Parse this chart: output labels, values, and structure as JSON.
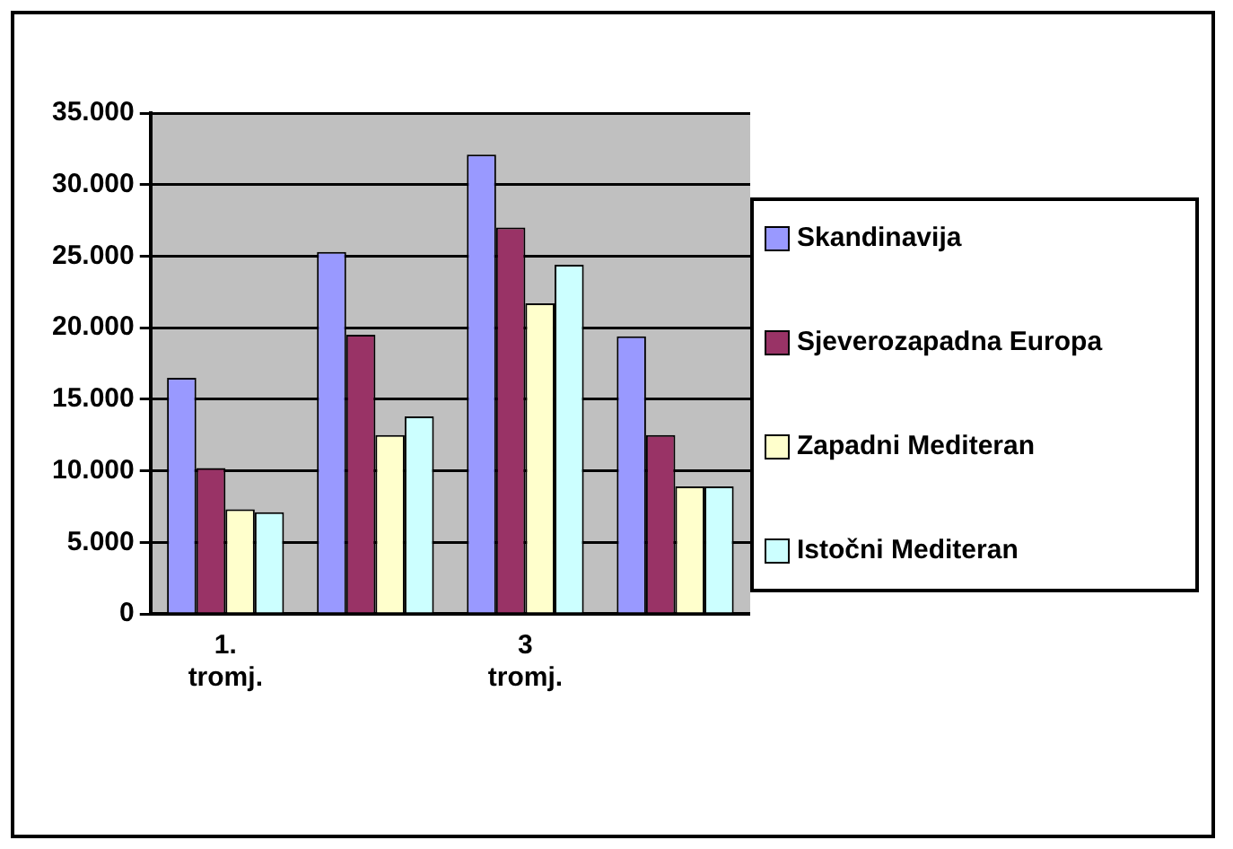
{
  "chart_data": {
    "type": "bar",
    "categories": [
      "1. tromj.",
      null,
      "3 tromj.",
      null
    ],
    "series": [
      {
        "name": "Skandinavija",
        "color": "#9999ff",
        "values": [
          16500,
          25300,
          32100,
          19400
        ]
      },
      {
        "name": "Sjeverozapadna Europa",
        "color": "#993366",
        "values": [
          10200,
          19500,
          27000,
          12500
        ]
      },
      {
        "name": "Zapadni Mediteran",
        "color": "#ffffcc",
        "values": [
          7300,
          12500,
          21700,
          8900
        ]
      },
      {
        "name": "Istočni Mediteran",
        "color": "#ccffff",
        "values": [
          7100,
          13800,
          24400,
          8900
        ]
      }
    ],
    "ylim": [
      0,
      35000
    ],
    "yticks": [
      {
        "value": 0,
        "label": "0"
      },
      {
        "value": 5000,
        "label": "5.000"
      },
      {
        "value": 10000,
        "label": "10.000"
      },
      {
        "value": 15000,
        "label": "15.000"
      },
      {
        "value": 20000,
        "label": "20.000"
      },
      {
        "value": 25000,
        "label": "25.000"
      },
      {
        "value": 30000,
        "label": "30.000"
      },
      {
        "value": 35000,
        "label": "35.000"
      }
    ],
    "grid": "y",
    "legend": "right"
  }
}
